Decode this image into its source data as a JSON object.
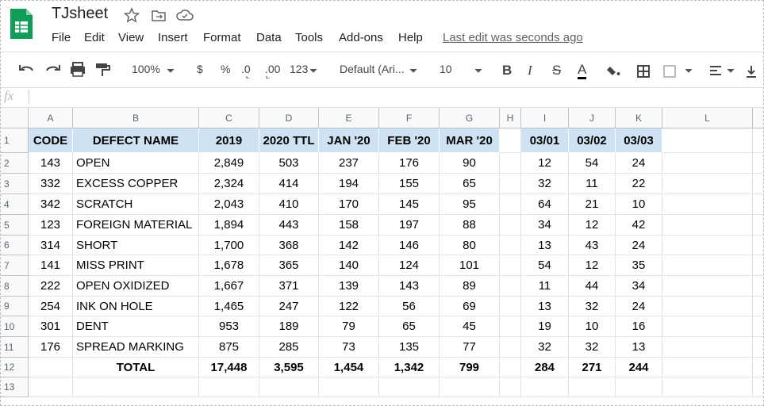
{
  "app": {
    "title": "TJsheet",
    "menus": [
      "File",
      "Edit",
      "View",
      "Insert",
      "Format",
      "Data",
      "Tools",
      "Add-ons",
      "Help"
    ],
    "last_edit": "Last edit was seconds ago"
  },
  "toolbar": {
    "zoom": "100%",
    "currency": "$",
    "percent": "%",
    "decrease_decimal": ".0",
    "increase_decimal": ".00",
    "more_formats": "123",
    "font": "Default (Ari...",
    "font_size": "10",
    "format_buttons": [
      "B",
      "I",
      "S",
      "A"
    ]
  },
  "formula_bar": {
    "label": "fx"
  },
  "grid": {
    "columns": [
      "A",
      "B",
      "C",
      "D",
      "E",
      "F",
      "G",
      "H",
      "I",
      "J",
      "K",
      "L"
    ],
    "row_numbers": [
      1,
      2,
      3,
      4,
      5,
      6,
      7,
      8,
      9,
      10,
      11,
      12,
      13
    ]
  },
  "table": {
    "header": [
      "CODE",
      "DEFECT NAME",
      "2019",
      "2020 TTL",
      "JAN '20",
      "FEB '20",
      "MAR '20",
      "03/01",
      "03/02",
      "03/03"
    ],
    "rows": [
      [
        "143",
        "OPEN",
        "2,849",
        "503",
        "237",
        "176",
        "90",
        "12",
        "54",
        "24"
      ],
      [
        "332",
        "EXCESS COPPER",
        "2,324",
        "414",
        "194",
        "155",
        "65",
        "32",
        "11",
        "22"
      ],
      [
        "342",
        "SCRATCH",
        "2,043",
        "410",
        "170",
        "145",
        "95",
        "64",
        "21",
        "10"
      ],
      [
        "123",
        "FOREIGN MATERIAL",
        "1,894",
        "443",
        "158",
        "197",
        "88",
        "34",
        "12",
        "42"
      ],
      [
        "314",
        "SHORT",
        "1,700",
        "368",
        "142",
        "146",
        "80",
        "13",
        "43",
        "24"
      ],
      [
        "141",
        "MISS PRINT",
        "1,678",
        "365",
        "140",
        "124",
        "101",
        "54",
        "12",
        "35"
      ],
      [
        "222",
        "OPEN OXIDIZED",
        "1,667",
        "371",
        "139",
        "143",
        "89",
        "11",
        "44",
        "34"
      ],
      [
        "254",
        "INK ON HOLE",
        "1,465",
        "247",
        "122",
        "56",
        "69",
        "13",
        "32",
        "24"
      ],
      [
        "301",
        "DENT",
        "953",
        "189",
        "79",
        "65",
        "45",
        "19",
        "10",
        "16"
      ],
      [
        "176",
        "SPREAD MARKING",
        "875",
        "285",
        "73",
        "135",
        "77",
        "32",
        "32",
        "13"
      ]
    ],
    "total": {
      "label": "TOTAL",
      "values": [
        "17,448",
        "3,595",
        "1,454",
        "1,342",
        "799",
        "284",
        "271",
        "244"
      ]
    }
  }
}
